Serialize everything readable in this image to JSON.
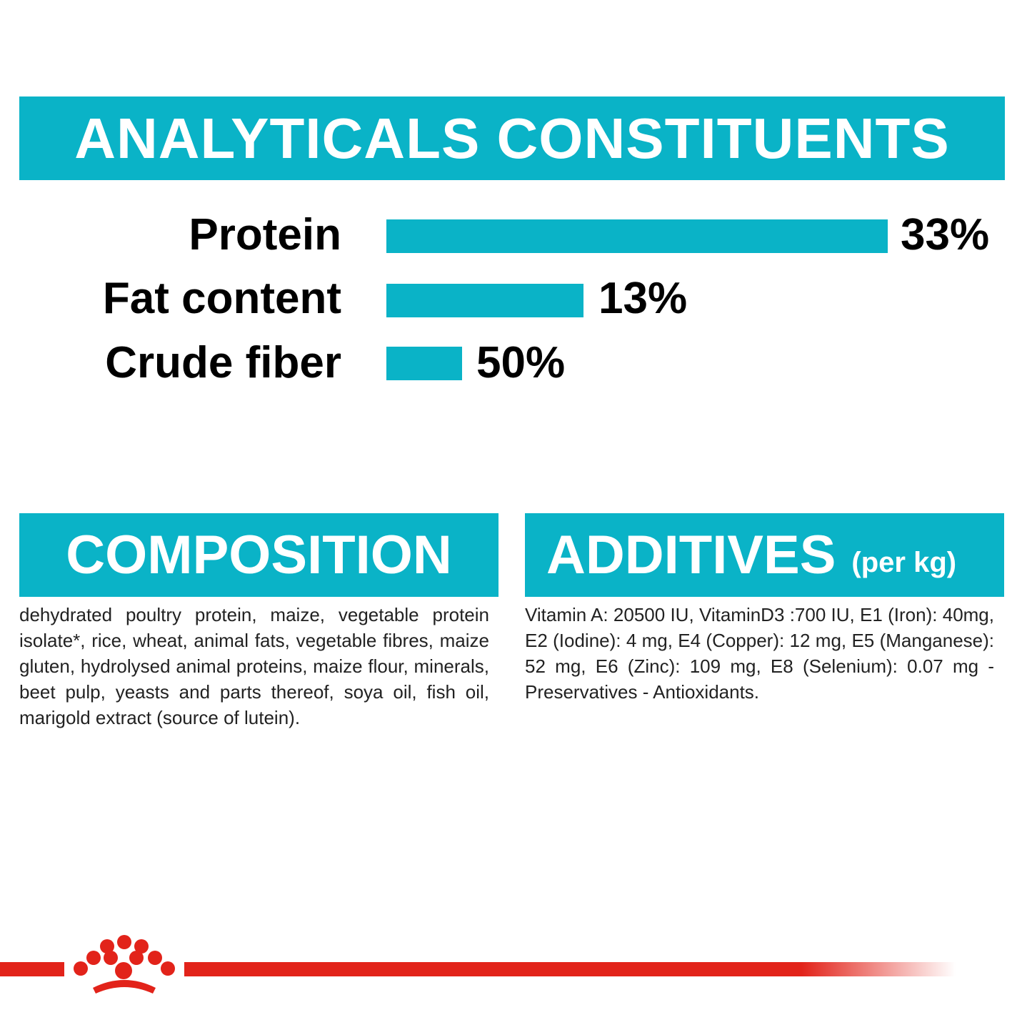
{
  "header": {
    "title": "ANALYTICALS CONSTITUENTS"
  },
  "constituents": [
    {
      "label": "Protein",
      "value": "33%"
    },
    {
      "label": "Fat content",
      "value": "13%"
    },
    {
      "label": "Crude fiber",
      "value": "50%"
    }
  ],
  "composition": {
    "title": "COMPOSITION",
    "text": "dehydrated poultry protein, maize, vegetable protein isolate*, rice, wheat, animal fats, vegetable fibres, maize gluten, hydrolysed animal proteins, maize flour, minerals, beet pulp, yeasts and parts thereof, soya oil, fish oil, marigold extract (source of lutein)."
  },
  "additives": {
    "title": "ADDITIVES",
    "unit": "(per kg)",
    "text": "Vitamin A: 20500 IU, VitaminD3 :700 IU, E1 (Iron): 40mg, E2 (Iodine): 4 mg, E4 (Copper): 12 mg, E5 (Manganese): 52 mg, E6 (Zinc): 109 mg, E8 (Selenium): 0.07 mg - Preservatives - Antioxidants."
  }
}
